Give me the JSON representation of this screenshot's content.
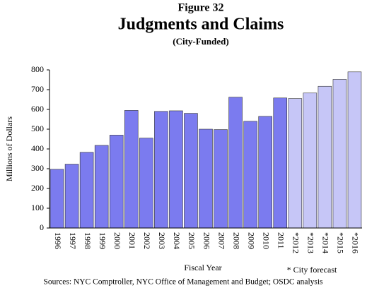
{
  "chart_data": {
    "type": "bar",
    "title": "Figure 32",
    "subtitle": "Judgments and Claims",
    "subsubtitle": "(City-Funded)",
    "y_label": "Millions of Dollars",
    "x_label": "Fiscal Year",
    "annotation": "* City forecast",
    "source": "Sources: NYC Comptroller, NYC Office of Management and Budget; OSDC analysis",
    "categories": [
      "1996",
      "1997",
      "1998",
      "1999",
      "2000",
      "2001",
      "2002",
      "2003",
      "2004",
      "2005",
      "2006",
      "2007",
      "2008",
      "2009",
      "2010",
      "2011",
      "*2012",
      "*2013",
      "*2014",
      "*2015",
      "*2016"
    ],
    "values": [
      297,
      323,
      383,
      418,
      470,
      595,
      455,
      590,
      593,
      580,
      500,
      498,
      662,
      540,
      565,
      658,
      655,
      683,
      717,
      752,
      790
    ],
    "colors": [
      "#7b7bef",
      "#7b7bef",
      "#7b7bef",
      "#7b7bef",
      "#7b7bef",
      "#7b7bef",
      "#7b7bef",
      "#7b7bef",
      "#7b7bef",
      "#7b7bef",
      "#7b7bef",
      "#7b7bef",
      "#7b7bef",
      "#7b7bef",
      "#7b7bef",
      "#7b7bef",
      "#c6c6f7",
      "#c6c6f7",
      "#c6c6f7",
      "#c6c6f7",
      "#c6c6f7"
    ],
    "ylim": [
      0,
      800
    ],
    "yticks": [
      0,
      100,
      200,
      300,
      400,
      500,
      600,
      700,
      800
    ],
    "grid": false
  }
}
